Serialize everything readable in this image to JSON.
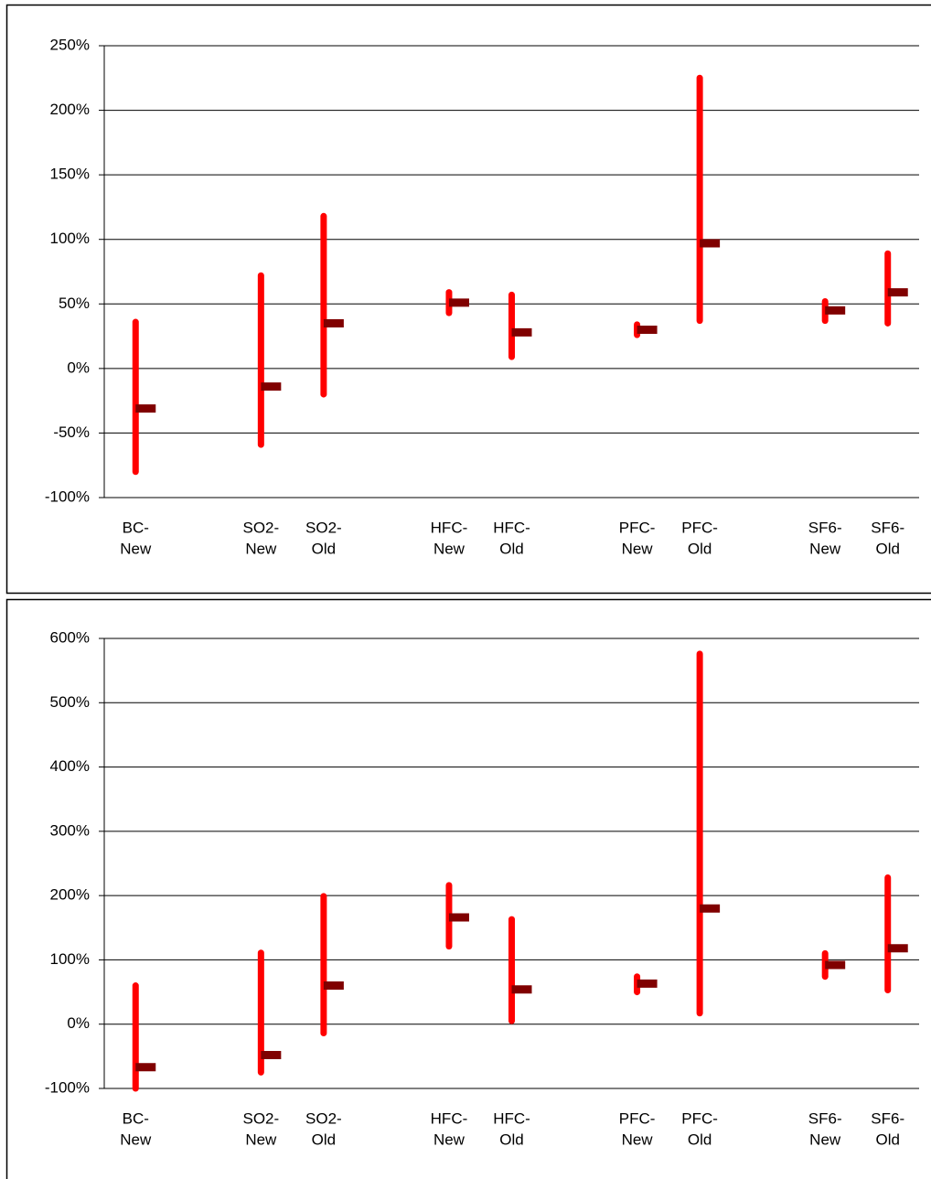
{
  "chart_data": [
    {
      "type": "hilo",
      "categories": [
        [
          "BC-",
          "New"
        ],
        null,
        [
          "SO2-",
          "New"
        ],
        [
          "SO2-",
          "Old"
        ],
        null,
        [
          "HFC-",
          "New"
        ],
        [
          "HFC-",
          "Old"
        ],
        null,
        [
          "PFC-",
          "New"
        ],
        [
          "PFC-",
          "Old"
        ],
        null,
        [
          "SF6-",
          "New"
        ],
        [
          "SF6-",
          "Old"
        ]
      ],
      "series": [
        {
          "name": "low",
          "color": "#ff0000",
          "values": [
            -80,
            null,
            -59,
            -20,
            null,
            43,
            9,
            null,
            26,
            37,
            null,
            37,
            35
          ]
        },
        {
          "name": "high",
          "color": "#ff0000",
          "values": [
            36,
            null,
            72,
            118,
            null,
            59,
            57,
            null,
            34,
            225,
            null,
            52,
            89
          ]
        },
        {
          "name": "close",
          "color": "#800000",
          "values": [
            -31,
            null,
            -14,
            35,
            null,
            51,
            28,
            null,
            30,
            97,
            null,
            45,
            59
          ]
        }
      ],
      "ylim": [
        -100,
        250
      ],
      "yticks": [
        {
          "value": -100,
          "label": "-100%"
        },
        {
          "value": -50,
          "label": "-50%"
        },
        {
          "value": 0,
          "label": "0%"
        },
        {
          "value": 50,
          "label": "50%"
        },
        {
          "value": 100,
          "label": "100%"
        },
        {
          "value": 150,
          "label": "150%"
        },
        {
          "value": 200,
          "label": "200%"
        },
        {
          "value": 250,
          "label": "250%"
        }
      ],
      "grid": true
    },
    {
      "type": "hilo",
      "categories": [
        [
          "BC-",
          "New"
        ],
        null,
        [
          "SO2-",
          "New"
        ],
        [
          "SO2-",
          "Old"
        ],
        null,
        [
          "HFC-",
          "New"
        ],
        [
          "HFC-",
          "Old"
        ],
        null,
        [
          "PFC-",
          "New"
        ],
        [
          "PFC-",
          "Old"
        ],
        null,
        [
          "SF6-",
          "New"
        ],
        [
          "SF6-",
          "Old"
        ]
      ],
      "series": [
        {
          "name": "low",
          "color": "#ff0000",
          "values": [
            -100,
            null,
            -75,
            -14,
            null,
            121,
            5,
            null,
            50,
            17,
            null,
            74,
            53
          ]
        },
        {
          "name": "high",
          "color": "#ff0000",
          "values": [
            60,
            null,
            111,
            199,
            null,
            216,
            163,
            null,
            74,
            576,
            null,
            110,
            228
          ]
        },
        {
          "name": "close",
          "color": "#800000",
          "values": [
            -67,
            null,
            -48,
            60,
            null,
            166,
            54,
            null,
            63,
            180,
            null,
            92,
            118
          ]
        }
      ],
      "ylim": [
        -100,
        600
      ],
      "yticks": [
        {
          "value": -100,
          "label": "-100%"
        },
        {
          "value": 0,
          "label": "0%"
        },
        {
          "value": 100,
          "label": "100%"
        },
        {
          "value": 200,
          "label": "200%"
        },
        {
          "value": 300,
          "label": "300%"
        },
        {
          "value": 400,
          "label": "400%"
        },
        {
          "value": 500,
          "label": "500%"
        },
        {
          "value": 600,
          "label": "600%"
        }
      ],
      "grid": true
    }
  ]
}
